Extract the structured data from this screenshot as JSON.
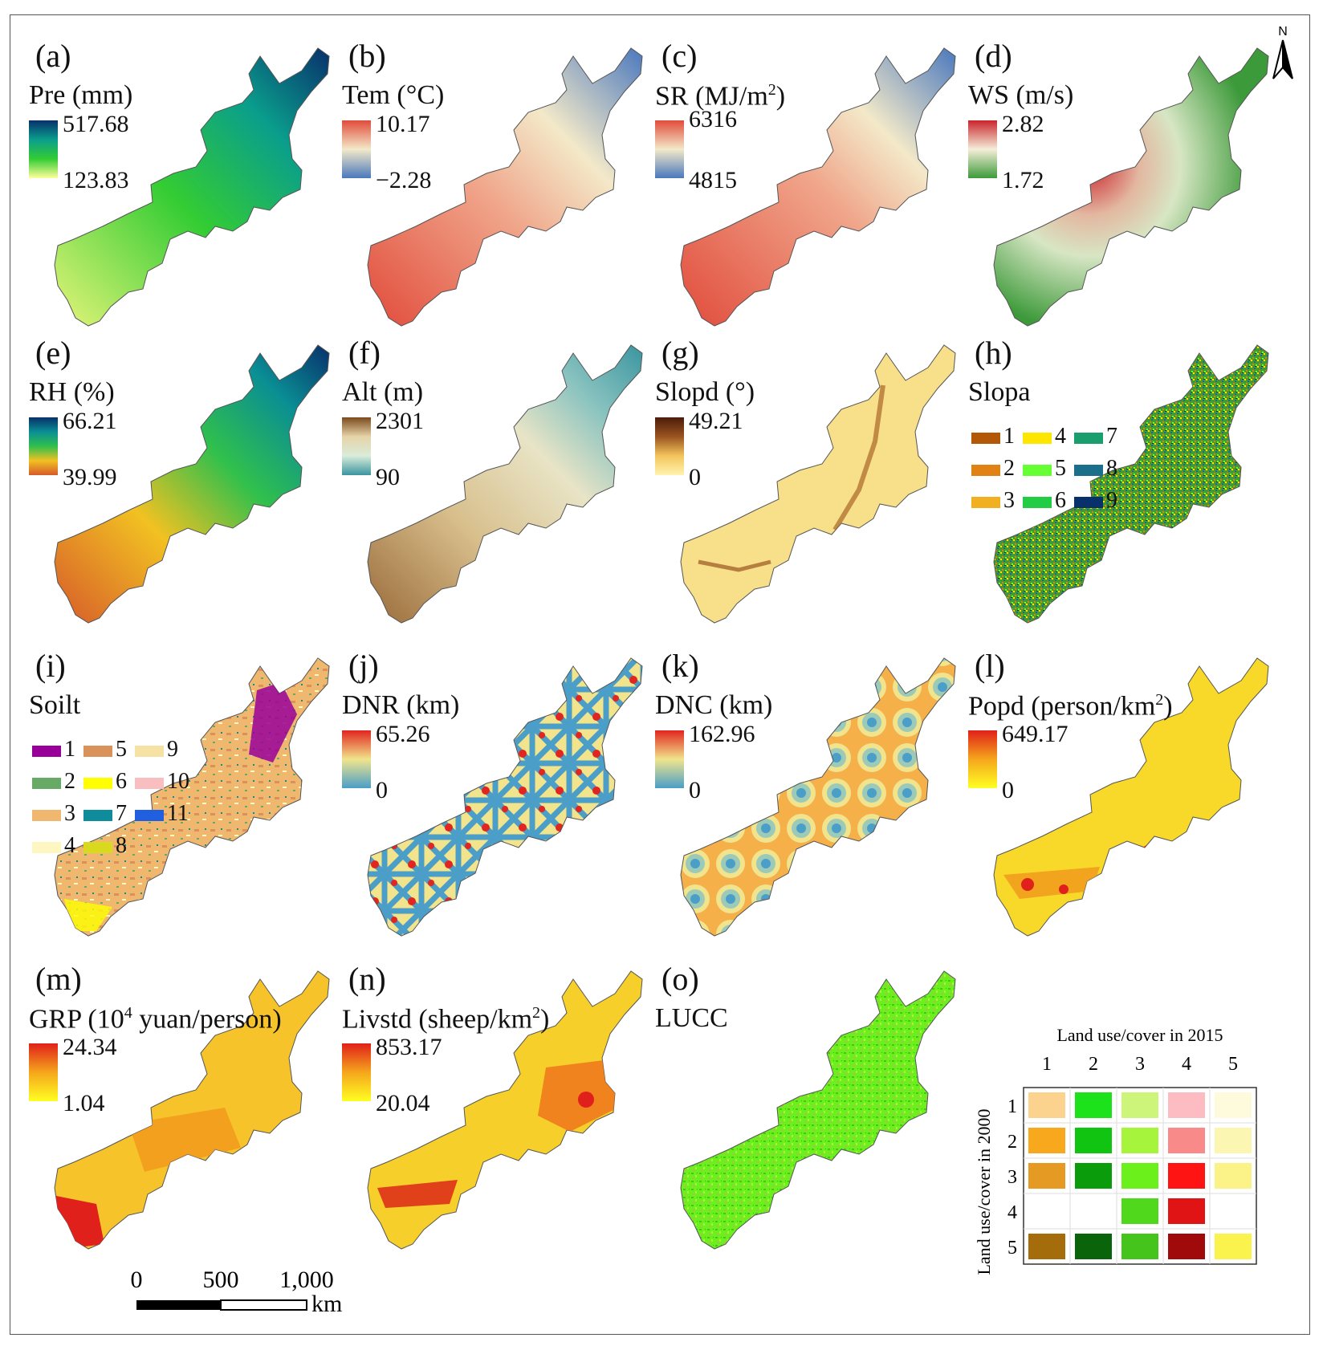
{
  "panels": [
    {
      "id": "a",
      "label": "(a)",
      "variable": "Pre (mm)",
      "max": "517.68",
      "min": "123.83",
      "legend": "gradient",
      "colors": [
        "#ffff99",
        "#33cc33",
        "#0a9e8c",
        "#08306b"
      ]
    },
    {
      "id": "b",
      "label": "(b)",
      "variable": "Tem (°C)",
      "max": "10.17",
      "min": "−2.28",
      "legend": "gradient",
      "colors": [
        "#4a78bd",
        "#f3e9c9",
        "#e14b3b"
      ]
    },
    {
      "id": "c",
      "label": "(c)",
      "variable": "SR (MJ/m",
      "variable_sup": "2",
      "variable_tail": ")",
      "max": "6316",
      "min": "4815",
      "legend": "gradient",
      "colors": [
        "#4a78bd",
        "#f3e9c9",
        "#e14b3b"
      ]
    },
    {
      "id": "d",
      "label": "(d)",
      "variable": "WS (m/s)",
      "max": "2.82",
      "min": "1.72",
      "legend": "gradient",
      "colors": [
        "#3d9a3a",
        "#f5eed9",
        "#c9242c"
      ]
    },
    {
      "id": "e",
      "label": "(e)",
      "variable": "RH (%)",
      "max": "66.21",
      "min": "39.99",
      "legend": "gradient",
      "colors": [
        "#d65a2a",
        "#f2c122",
        "#30c04c",
        "#0a8e94",
        "#08306b"
      ]
    },
    {
      "id": "f",
      "label": "(f)",
      "variable": "Alt (m)",
      "max": "2301",
      "min": "90",
      "legend": "gradient",
      "colors": [
        "#3a95a0",
        "#d9ecd9",
        "#e6d3a8",
        "#7a4a1c"
      ]
    },
    {
      "id": "g",
      "label": "(g)",
      "variable": "Slopd (°)",
      "max": "49.21",
      "min": "0",
      "legend": "gradient",
      "colors": [
        "#fff4b0",
        "#f3c55c",
        "#9a5420",
        "#4a1c0a"
      ]
    },
    {
      "id": "h",
      "label": "(h)",
      "variable": "Slopa",
      "legend": "classes",
      "classes": [
        {
          "v": "1",
          "c": "#b35806"
        },
        {
          "v": "4",
          "c": "#ffe600"
        },
        {
          "v": "7",
          "c": "#1a9e6e"
        },
        {
          "v": "2",
          "c": "#e08214"
        },
        {
          "v": "5",
          "c": "#66ff33"
        },
        {
          "v": "8",
          "c": "#1c6f8a"
        },
        {
          "v": "3",
          "c": "#f0b021"
        },
        {
          "v": "6",
          "c": "#22cc44"
        },
        {
          "v": "9",
          "c": "#08306b"
        }
      ]
    },
    {
      "id": "i",
      "label": "(i)",
      "variable": "Soilt",
      "legend": "classes",
      "classes": [
        {
          "v": "1",
          "c": "#990099"
        },
        {
          "v": "5",
          "c": "#d9935a"
        },
        {
          "v": "9",
          "c": "#f7e2a6"
        },
        {
          "v": "2",
          "c": "#66aa66"
        },
        {
          "v": "6",
          "c": "#ffff00"
        },
        {
          "v": "10",
          "c": "#f9bfc0"
        },
        {
          "v": "3",
          "c": "#f0b86e"
        },
        {
          "v": "7",
          "c": "#0f8c9c"
        },
        {
          "v": "11",
          "c": "#1f5fe0"
        },
        {
          "v": "4",
          "c": "#fff7c2"
        },
        {
          "v": "8",
          "c": "#d9d91f"
        }
      ]
    },
    {
      "id": "j",
      "label": "(j)",
      "variable": "DNR (km)",
      "max": "65.26",
      "min": "0",
      "legend": "gradient",
      "colors": [
        "#4a9ec8",
        "#f1e48c",
        "#e1251f"
      ]
    },
    {
      "id": "k",
      "label": "(k)",
      "variable": "DNC (km)",
      "max": "162.96",
      "min": "0",
      "legend": "gradient",
      "colors": [
        "#4a9ec8",
        "#f1e48c",
        "#e1251f"
      ]
    },
    {
      "id": "l",
      "label": "(l)",
      "variable": "Popd (person/km",
      "variable_sup": "2",
      "variable_tail": ")",
      "max": "649.17",
      "min": "0",
      "legend": "gradient",
      "colors": [
        "#ffff22",
        "#f5a61c",
        "#e0201a"
      ]
    },
    {
      "id": "m",
      "label": "(m)",
      "variable": "GRP (10",
      "variable_sup": "4",
      "variable_tail": " yuan/person)",
      "max": "24.34",
      "min": "1.04",
      "legend": "gradient",
      "colors": [
        "#ffff22",
        "#f5a61c",
        "#e0201a"
      ]
    },
    {
      "id": "n",
      "label": "(n)",
      "variable": "Livstd (sheep/km",
      "variable_sup": "2",
      "variable_tail": ")",
      "max": "853.17",
      "min": "20.04",
      "legend": "gradient",
      "colors": [
        "#ffff22",
        "#f5a61c",
        "#e0201a"
      ]
    },
    {
      "id": "o",
      "label": "(o)",
      "variable": "LUCC",
      "legend": "none"
    }
  ],
  "lucc_matrix": {
    "title": "Land use/cover in 2015",
    "y_title": "Land use/cover in 2000",
    "col_labels": [
      "1",
      "2",
      "3",
      "4",
      "5"
    ],
    "row_labels": [
      "1",
      "2",
      "3",
      "4",
      "5"
    ],
    "cells": [
      [
        "#fbd38f",
        "#1be21b",
        "#cdf57a",
        "#fcbcc2",
        "#fdfbdb"
      ],
      [
        "#f8a81c",
        "#12c412",
        "#a6f53c",
        "#f98a8a",
        "#fcf6b3"
      ],
      [
        "#e59b23",
        "#0a9c0a",
        "#6cf01c",
        "#ff1414",
        "#fcf388"
      ],
      [
        "",
        "",
        "#4fd81c",
        "#e01414",
        ""
      ],
      [
        "#a46c0a",
        "#0a640a",
        "#45c41c",
        "#a00a0a",
        "#fbf34d"
      ]
    ]
  },
  "scale_bar": {
    "ticks": [
      "0",
      "500",
      "1,000"
    ],
    "unit": "km"
  },
  "north": {
    "label": "N"
  }
}
